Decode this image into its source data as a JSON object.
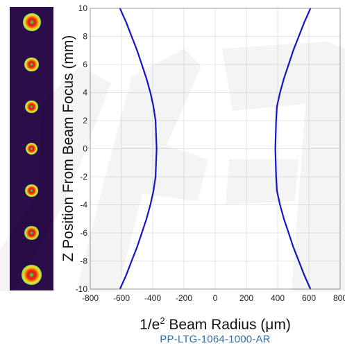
{
  "chart_data": {
    "type": "line",
    "title": "",
    "xlabel": "1/e² Beam Radius (μm)",
    "ylabel": "Z Position From Beam Focus (mm)",
    "xlim": [
      -800,
      800
    ],
    "ylim": [
      -10,
      10
    ],
    "x_ticks": [
      "-800",
      "-600",
      "-400",
      "-200",
      "0",
      "200",
      "400",
      "600",
      "800"
    ],
    "y_ticks": [
      "-10",
      "-8",
      "-6",
      "-4",
      "-2",
      "0",
      "2",
      "4",
      "6",
      "8",
      "10"
    ],
    "grid": true,
    "series": [
      {
        "color": "#1515c8",
        "x": [
          -610,
          -570,
          -535,
          -500,
          -470,
          -440,
          -415,
          -395,
          -382,
          -375,
          -382,
          -395,
          -415,
          -440,
          -470,
          -500,
          -535,
          -570,
          -610
        ],
        "y": [
          10,
          9,
          8,
          7,
          6,
          5,
          4,
          3,
          2,
          0,
          -2,
          -3,
          -4,
          -5,
          -6,
          -7,
          -8,
          -9,
          -10
        ]
      },
      {
        "color": "#1515c8",
        "x": [
          610,
          570,
          535,
          500,
          470,
          440,
          415,
          395,
          390,
          385,
          390,
          395,
          415,
          440,
          470,
          500,
          535,
          570,
          610
        ],
        "y": [
          10,
          9,
          8,
          7,
          6,
          5,
          4,
          3,
          2,
          0,
          -2,
          -3,
          -4,
          -5,
          -6,
          -7,
          -8,
          -9,
          -10
        ]
      }
    ]
  },
  "labels": {
    "x_prefix": "1/e",
    "x_sup": "2",
    "x_suffix": " Beam Radius (μm)",
    "y": "Z Position From Beam Focus (mm)",
    "part_number": "PP-LTG-1064-1000-AR"
  },
  "beam_profiles": {
    "colors": {
      "background": "#2b0d4a",
      "outer": "#1ec8d8",
      "mid": "#f0e010",
      "inner": "#e82010",
      "core": "#3ad040"
    },
    "z_positions_mm": [
      9,
      6,
      3,
      0,
      -3,
      -6,
      -9
    ],
    "relative_sizes": [
      1.0,
      0.78,
      0.7,
      0.66,
      0.7,
      0.8,
      1.1
    ]
  }
}
